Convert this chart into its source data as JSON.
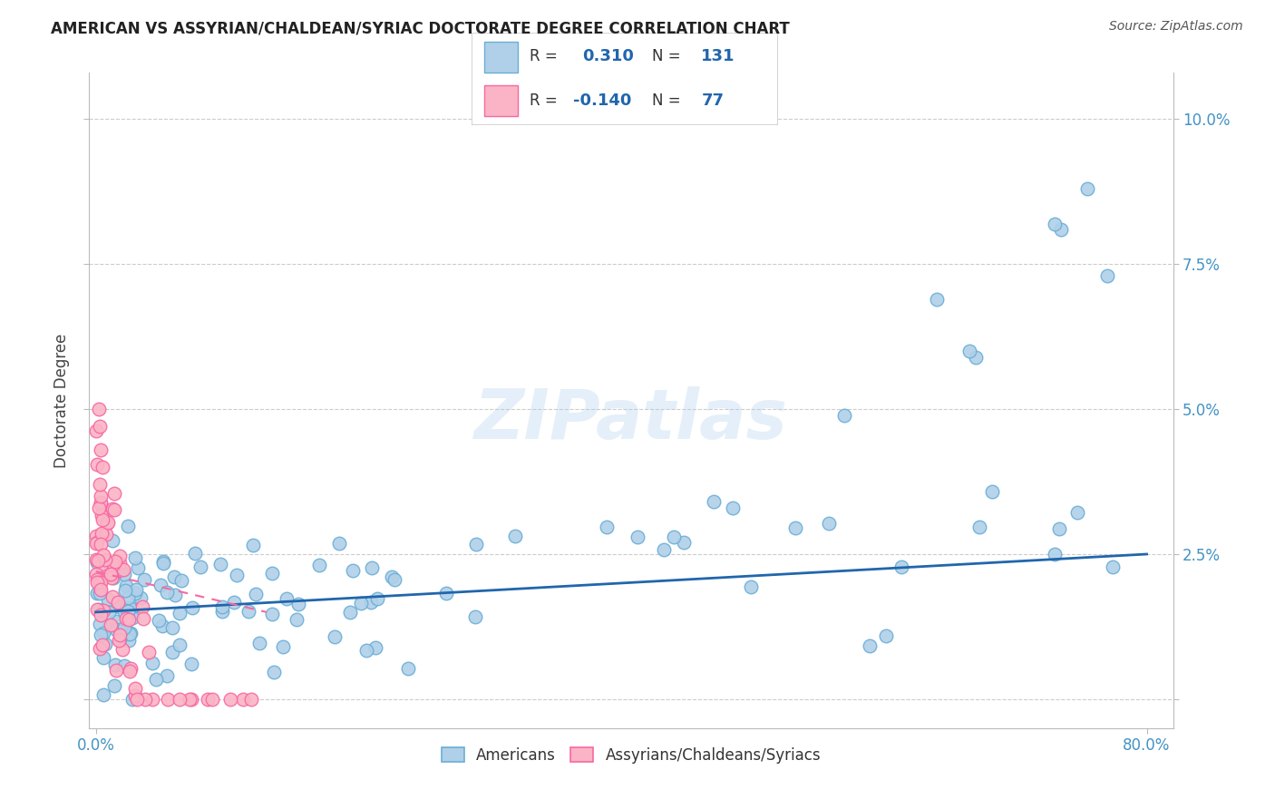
{
  "title": "AMERICAN VS ASSYRIAN/CHALDEAN/SYRIAC DOCTORATE DEGREE CORRELATION CHART",
  "source": "Source: ZipAtlas.com",
  "ylabel": "Doctorate Degree",
  "ytick_values": [
    0.0,
    0.025,
    0.05,
    0.075,
    0.1
  ],
  "ytick_labels": [
    "",
    "2.5%",
    "5.0%",
    "7.5%",
    "10.0%"
  ],
  "xtick_left": "0.0%",
  "xtick_right": "80.0%",
  "xlim": [
    0.0,
    0.8
  ],
  "ylim": [
    -0.005,
    0.108
  ],
  "watermark": "ZIPatlas",
  "blue_fill": "#afd0e8",
  "blue_edge": "#6baed6",
  "blue_line": "#2166ac",
  "pink_fill": "#fbb4c6",
  "pink_edge": "#f768a1",
  "pink_line": "#f768a1",
  "tick_color": "#4393c3",
  "grid_color": "#cccccc",
  "bg_color": "#ffffff",
  "americans_label": "Americans",
  "assyrians_label": "Assyrians/Chaldeans/Syriacs",
  "r_american": "0.310",
  "n_american": "131",
  "r_assyrian": "-0.140",
  "n_assyrian": "77"
}
